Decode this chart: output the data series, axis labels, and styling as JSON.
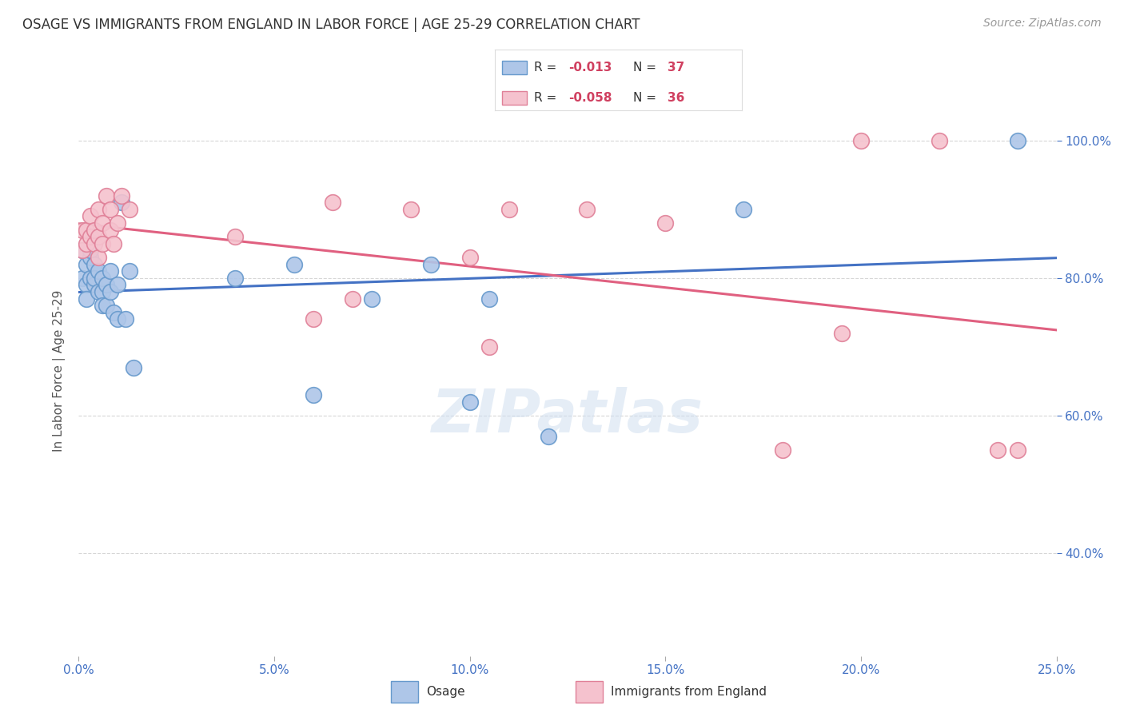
{
  "title": "OSAGE VS IMMIGRANTS FROM ENGLAND IN LABOR FORCE | AGE 25-29 CORRELATION CHART",
  "source": "Source: ZipAtlas.com",
  "ylabel": "In Labor Force | Age 25-29",
  "xlim": [
    0,
    0.25
  ],
  "ylim": [
    0.25,
    1.08
  ],
  "xticks": [
    0.0,
    0.05,
    0.1,
    0.15,
    0.2,
    0.25
  ],
  "yticks": [
    0.4,
    0.6,
    0.8,
    1.0
  ],
  "ytick_labels": [
    "40.0%",
    "60.0%",
    "80.0%",
    "100.0%"
  ],
  "xtick_labels": [
    "0.0%",
    "5.0%",
    "10.0%",
    "15.0%",
    "20.0%",
    "25.0%"
  ],
  "background_color": "#ffffff",
  "grid_color": "#cccccc",
  "series1_label": "Osage",
  "series1_color": "#aec6e8",
  "series1_edge_color": "#6699cc",
  "series1_line_color": "#4472c4",
  "series1_R": "-0.013",
  "series1_N": "37",
  "series2_label": "Immigrants from England",
  "series2_color": "#f5c2ce",
  "series2_edge_color": "#e08098",
  "series2_line_color": "#e06080",
  "series2_R": "-0.058",
  "series2_N": "36",
  "watermark": "ZIPatlas",
  "osage_x": [
    0.001,
    0.001,
    0.002,
    0.002,
    0.002,
    0.003,
    0.003,
    0.003,
    0.004,
    0.004,
    0.004,
    0.005,
    0.005,
    0.006,
    0.006,
    0.006,
    0.007,
    0.007,
    0.008,
    0.008,
    0.009,
    0.01,
    0.01,
    0.011,
    0.012,
    0.013,
    0.014,
    0.04,
    0.055,
    0.06,
    0.075,
    0.09,
    0.1,
    0.105,
    0.12,
    0.17,
    0.24
  ],
  "osage_y": [
    0.84,
    0.8,
    0.82,
    0.79,
    0.77,
    0.83,
    0.8,
    0.84,
    0.79,
    0.82,
    0.8,
    0.78,
    0.81,
    0.78,
    0.76,
    0.8,
    0.79,
    0.76,
    0.81,
    0.78,
    0.75,
    0.74,
    0.79,
    0.91,
    0.74,
    0.81,
    0.67,
    0.8,
    0.82,
    0.63,
    0.77,
    0.82,
    0.62,
    0.77,
    0.57,
    0.9,
    1.0
  ],
  "england_x": [
    0.001,
    0.001,
    0.002,
    0.002,
    0.003,
    0.003,
    0.004,
    0.004,
    0.005,
    0.005,
    0.005,
    0.006,
    0.006,
    0.007,
    0.008,
    0.008,
    0.009,
    0.01,
    0.011,
    0.013,
    0.04,
    0.06,
    0.065,
    0.07,
    0.085,
    0.1,
    0.105,
    0.11,
    0.13,
    0.15,
    0.18,
    0.195,
    0.2,
    0.22,
    0.235,
    0.24
  ],
  "england_y": [
    0.84,
    0.87,
    0.85,
    0.87,
    0.86,
    0.89,
    0.85,
    0.87,
    0.83,
    0.86,
    0.9,
    0.85,
    0.88,
    0.92,
    0.87,
    0.9,
    0.85,
    0.88,
    0.92,
    0.9,
    0.86,
    0.74,
    0.91,
    0.77,
    0.9,
    0.83,
    0.7,
    0.9,
    0.9,
    0.88,
    0.55,
    0.72,
    1.0,
    1.0,
    0.55,
    0.55
  ]
}
